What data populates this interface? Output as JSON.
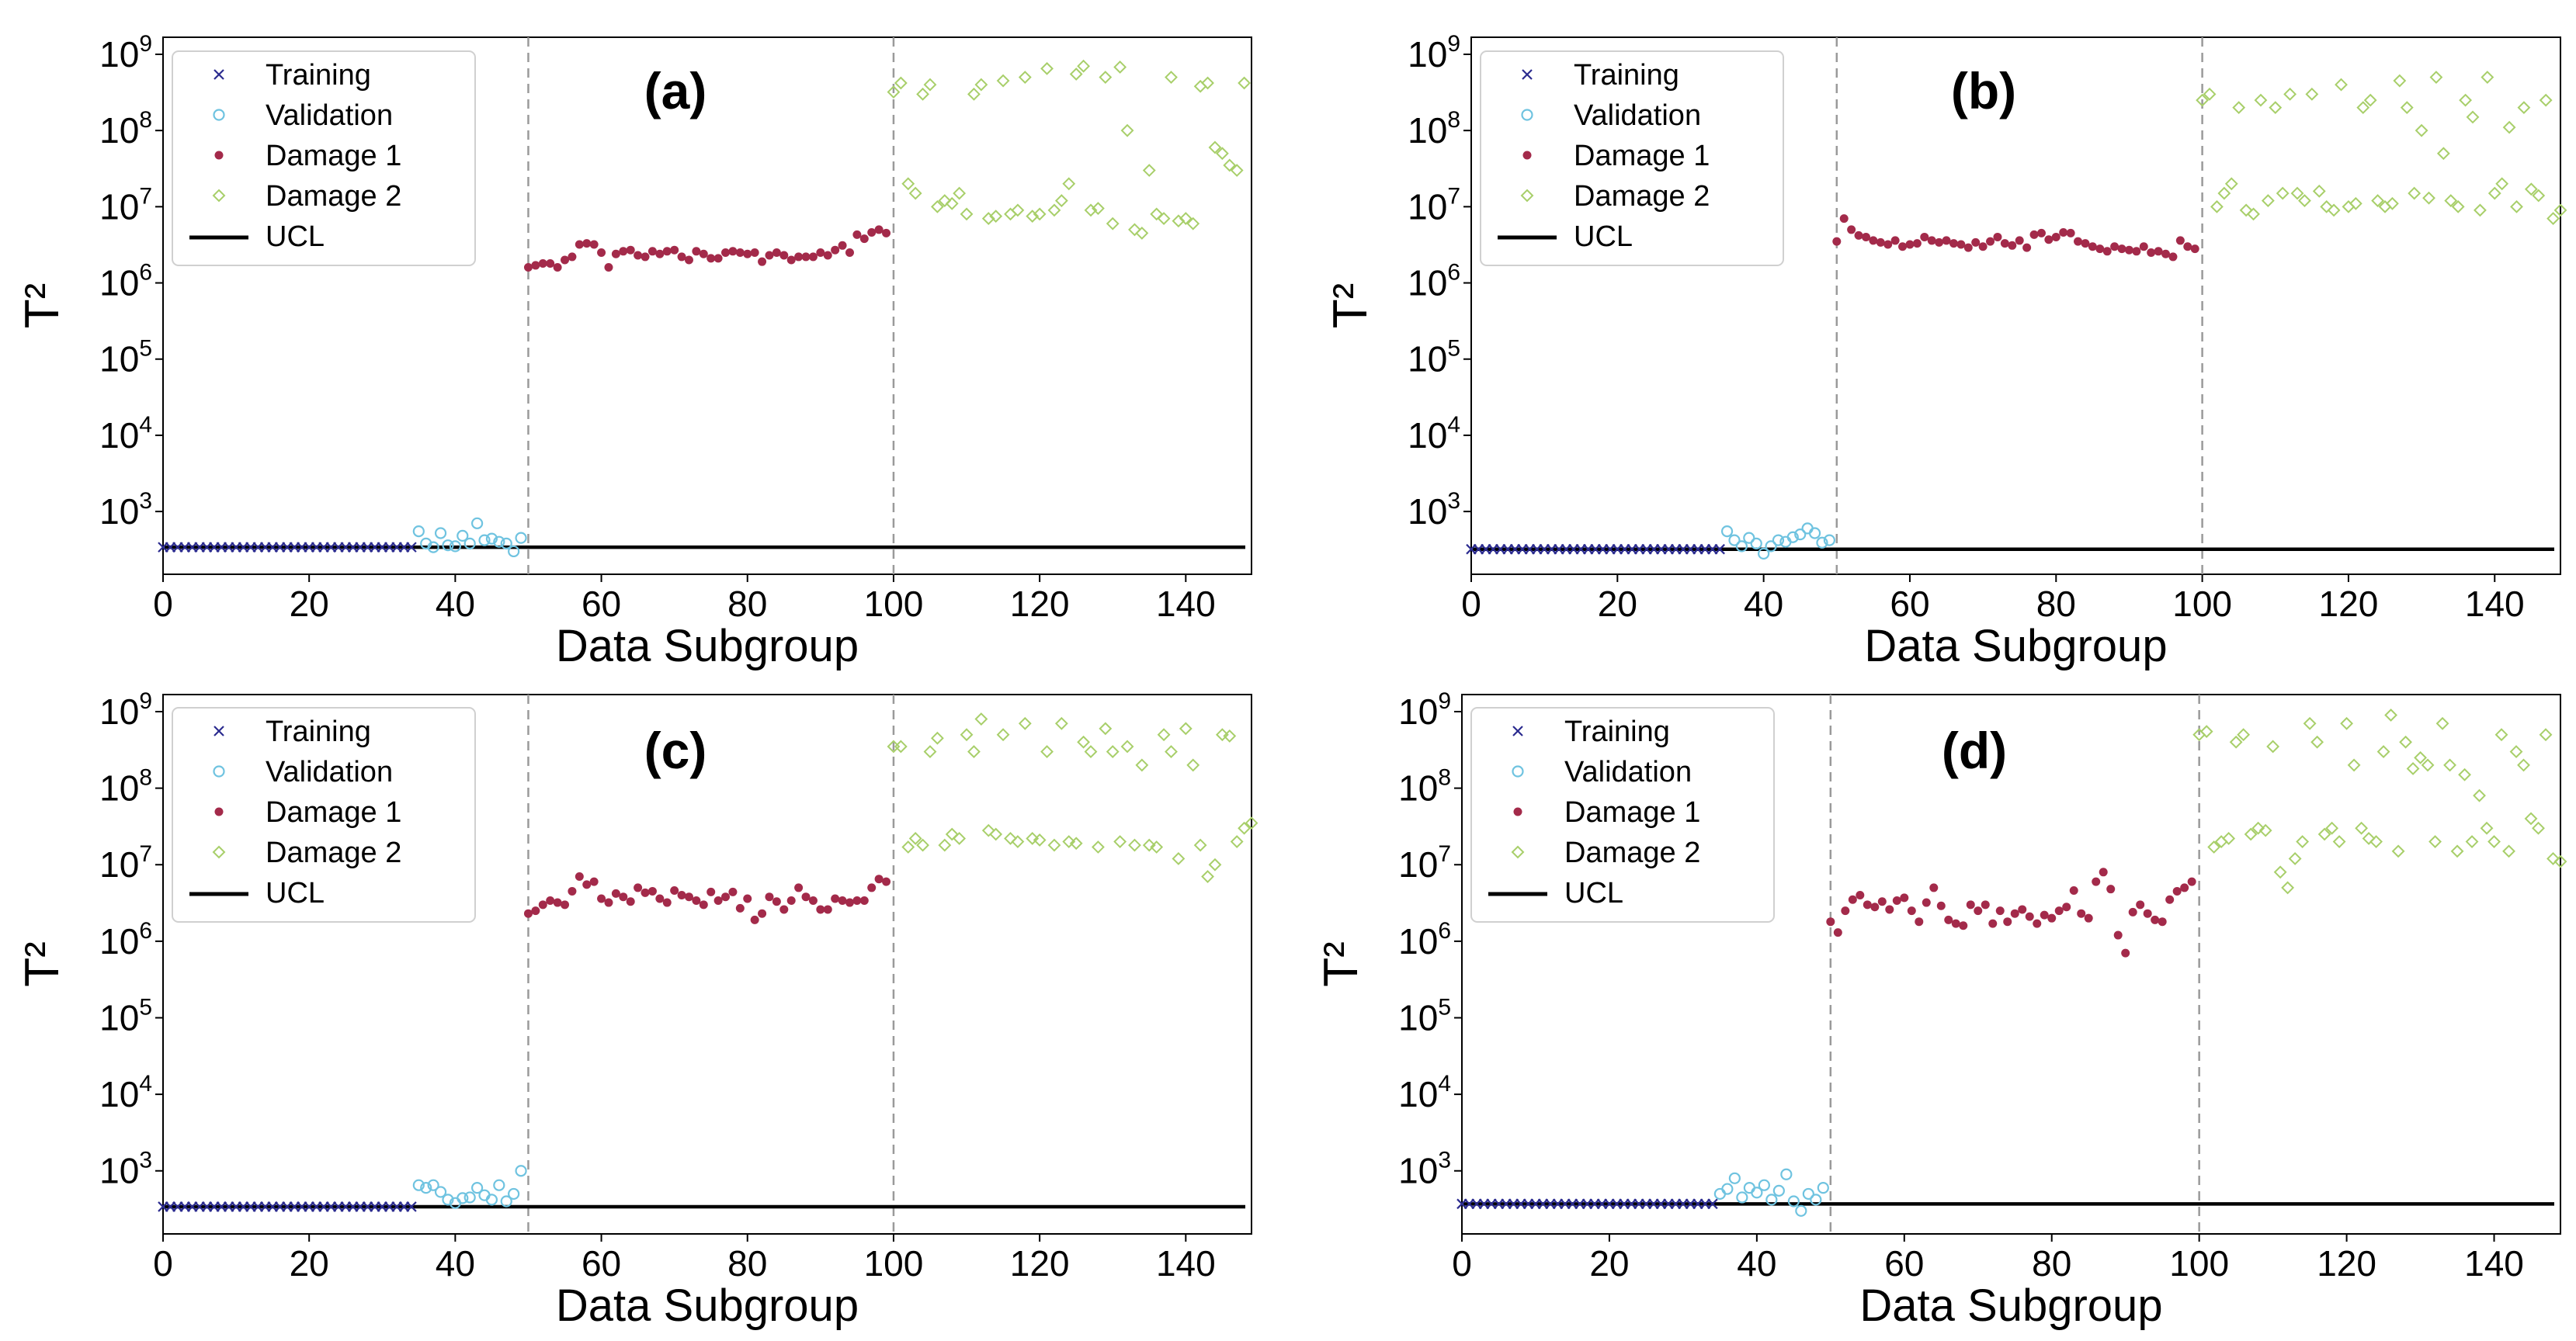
{
  "colors": {
    "training": "#2b2b8f",
    "validation": "#6fc3e0",
    "damage1": "#a32a4a",
    "damage2": "#a8cf6a",
    "ucl": "#000000",
    "divider": "#9a9a9a"
  },
  "chart_data": [
    {
      "type": "scatter",
      "panel_label": "(a)",
      "xlabel": "Data Subgroup",
      "ylabel": "T²",
      "yscale": "log",
      "xlim": [
        0,
        149
      ],
      "ylim": [
        150,
        1000000000
      ],
      "xticks": [
        0,
        20,
        40,
        60,
        80,
        100,
        120,
        140
      ],
      "yticks": [
        {
          "base": "10",
          "exp": "3",
          "value": 1000
        },
        {
          "base": "10",
          "exp": "4",
          "value": 10000
        },
        {
          "base": "10",
          "exp": "5",
          "value": 100000
        },
        {
          "base": "10",
          "exp": "6",
          "value": 1000000
        },
        {
          "base": "10",
          "exp": "7",
          "value": 10000000
        },
        {
          "base": "10",
          "exp": "8",
          "value": 100000000
        },
        {
          "base": "10",
          "exp": "9",
          "value": 1000000000
        }
      ],
      "dividers": [
        50,
        100
      ],
      "ucl": 340,
      "legend": [
        "Training",
        "Validation",
        "Damage 1",
        "Damage 2",
        "UCL"
      ],
      "series": [
        {
          "name": "Training",
          "marker": "x",
          "x_start": 0,
          "values": [
            340,
            340,
            340,
            340,
            340,
            340,
            340,
            340,
            340,
            340,
            340,
            340,
            340,
            340,
            340,
            340,
            340,
            340,
            340,
            340,
            340,
            340,
            340,
            340,
            340,
            340,
            340,
            340,
            340,
            340,
            340,
            340,
            340,
            340,
            340
          ]
        },
        {
          "name": "Validation",
          "marker": "o",
          "x_start": 35,
          "values": [
            550,
            380,
            340,
            520,
            360,
            350,
            480,
            380,
            700,
            420,
            440,
            400,
            380,
            300,
            450
          ]
        },
        {
          "name": "Damage 1",
          "marker": "dot",
          "x_start": 50,
          "values": [
            1600000,
            1700000,
            1800000,
            1800000,
            1600000,
            2000000,
            2200000,
            3200000,
            3300000,
            3200000,
            2500000,
            1600000,
            2400000,
            2600000,
            2700000,
            2300000,
            2200000,
            2600000,
            2400000,
            2600000,
            2700000,
            2200000,
            2000000,
            2600000,
            2400000,
            2100000,
            2100000,
            2500000,
            2600000,
            2500000,
            2400000,
            2500000,
            1900000,
            2300000,
            2500000,
            2300000,
            2000000,
            2200000,
            2200000,
            2200000,
            2500000,
            2300000,
            2700000,
            3100000,
            2500000,
            4300000,
            3800000,
            4600000,
            5000000,
            4500000
          ]
        },
        {
          "name": "Damage 2",
          "marker": "diamond",
          "x_start": 100,
          "values": [
            320000000,
            420000000,
            20000000,
            15000000,
            300000000,
            400000000,
            10000000,
            12000000,
            11000000,
            15000000,
            8000000,
            300000000,
            400000000,
            7000000,
            7500000,
            450000000,
            8000000,
            9000000,
            500000000,
            7500000,
            8000000,
            650000000,
            9000000,
            12000000,
            20000000,
            550000000,
            700000000,
            9000000,
            9500000,
            500000000,
            6000000,
            680000000,
            100000000,
            5000000,
            4500000,
            30000000,
            8000000,
            7000000,
            500000000,
            6500000,
            7000000,
            6000000,
            380000000,
            420000000,
            60000000,
            50000000,
            35000000,
            30000000,
            420000000
          ]
        }
      ]
    },
    {
      "type": "scatter",
      "panel_label": "(b)",
      "xlabel": "Data Subgroup",
      "ylabel": "T²",
      "yscale": "log",
      "xlim": [
        0,
        149
      ],
      "ylim": [
        150,
        1000000000
      ],
      "xticks": [
        0,
        20,
        40,
        60,
        80,
        100,
        120,
        140
      ],
      "yticks": [
        {
          "base": "10",
          "exp": "3",
          "value": 1000
        },
        {
          "base": "10",
          "exp": "4",
          "value": 10000
        },
        {
          "base": "10",
          "exp": "5",
          "value": 100000
        },
        {
          "base": "10",
          "exp": "6",
          "value": 1000000
        },
        {
          "base": "10",
          "exp": "7",
          "value": 10000000
        },
        {
          "base": "10",
          "exp": "8",
          "value": 100000000
        },
        {
          "base": "10",
          "exp": "9",
          "value": 1000000000
        }
      ],
      "dividers": [
        50,
        100
      ],
      "ucl": 320,
      "legend": [
        "Training",
        "Validation",
        "Damage 1",
        "Damage 2",
        "UCL"
      ],
      "series": [
        {
          "name": "Training",
          "marker": "x",
          "x_start": 0,
          "values": [
            320,
            320,
            320,
            320,
            320,
            320,
            320,
            320,
            320,
            320,
            320,
            320,
            320,
            320,
            320,
            320,
            320,
            320,
            320,
            320,
            320,
            320,
            320,
            320,
            320,
            320,
            320,
            320,
            320,
            320,
            320,
            320,
            320,
            320,
            320
          ]
        },
        {
          "name": "Validation",
          "marker": "o",
          "x_start": 35,
          "values": [
            550,
            420,
            350,
            450,
            380,
            280,
            350,
            420,
            400,
            460,
            500,
            600,
            520,
            390,
            420
          ]
        },
        {
          "name": "Damage 1",
          "marker": "dot",
          "x_start": 50,
          "values": [
            3500000,
            7000000,
            5000000,
            4200000,
            4000000,
            3600000,
            3400000,
            3200000,
            3600000,
            3000000,
            3200000,
            3300000,
            4000000,
            3600000,
            3400000,
            3600000,
            3300000,
            3200000,
            2900000,
            3400000,
            3000000,
            3500000,
            4000000,
            3300000,
            3100000,
            3600000,
            2900000,
            4300000,
            4500000,
            3700000,
            4000000,
            4600000,
            4500000,
            3500000,
            3300000,
            3000000,
            2800000,
            2600000,
            3000000,
            2800000,
            2700000,
            2600000,
            3000000,
            2500000,
            2600000,
            2400000,
            2200000,
            3600000,
            3000000,
            2800000
          ]
        },
        {
          "name": "Damage 2",
          "marker": "diamond",
          "x_start": 100,
          "values": [
            250000000,
            300000000,
            10000000,
            15000000,
            20000000,
            200000000,
            9000000,
            8000000,
            250000000,
            12000000,
            200000000,
            15000000,
            300000000,
            15000000,
            12000000,
            300000000,
            16000000,
            10000000,
            9000000,
            400000000,
            10000000,
            11000000,
            200000000,
            250000000,
            12000000,
            10000000,
            11000000,
            450000000,
            200000000,
            15000000,
            100000000,
            13000000,
            500000000,
            50000000,
            12000000,
            10000000,
            250000000,
            150000000,
            9000000,
            500000000,
            15000000,
            20000000,
            110000000,
            10000000,
            200000000,
            17000000,
            14000000,
            250000000,
            7000000,
            9000000
          ]
        }
      ]
    },
    {
      "type": "scatter",
      "panel_label": "(c)",
      "xlabel": "Data Subgroup",
      "ylabel": "T²",
      "yscale": "log",
      "xlim": [
        0,
        149
      ],
      "ylim": [
        150,
        1000000000
      ],
      "xticks": [
        0,
        20,
        40,
        60,
        80,
        100,
        120,
        140
      ],
      "yticks": [
        {
          "base": "10",
          "exp": "3",
          "value": 1000
        },
        {
          "base": "10",
          "exp": "4",
          "value": 10000
        },
        {
          "base": "10",
          "exp": "5",
          "value": 100000
        },
        {
          "base": "10",
          "exp": "6",
          "value": 1000000
        },
        {
          "base": "10",
          "exp": "7",
          "value": 10000000
        },
        {
          "base": "10",
          "exp": "8",
          "value": 100000000
        },
        {
          "base": "10",
          "exp": "9",
          "value": 1000000000
        }
      ],
      "dividers": [
        50,
        100
      ],
      "ucl": 340,
      "legend": [
        "Training",
        "Validation",
        "Damage 1",
        "Damage 2",
        "UCL"
      ],
      "series": [
        {
          "name": "Training",
          "marker": "x",
          "x_start": 0,
          "values": [
            340,
            340,
            340,
            340,
            340,
            340,
            340,
            340,
            340,
            340,
            340,
            340,
            340,
            340,
            340,
            340,
            340,
            340,
            340,
            340,
            340,
            340,
            340,
            340,
            340,
            340,
            340,
            340,
            340,
            340,
            340,
            340,
            340,
            340,
            340
          ]
        },
        {
          "name": "Validation",
          "marker": "o",
          "x_start": 35,
          "values": [
            650,
            600,
            650,
            530,
            420,
            380,
            440,
            450,
            600,
            480,
            420,
            650,
            400,
            500,
            1000
          ]
        },
        {
          "name": "Damage 1",
          "marker": "dot",
          "x_start": 50,
          "values": [
            2300000,
            2500000,
            3000000,
            3400000,
            3200000,
            3000000,
            4500000,
            7000000,
            5500000,
            6000000,
            3600000,
            3200000,
            4200000,
            3800000,
            3300000,
            5000000,
            4300000,
            4500000,
            3600000,
            3200000,
            4600000,
            4000000,
            3800000,
            3400000,
            3000000,
            4400000,
            3400000,
            3800000,
            4400000,
            2700000,
            3600000,
            1900000,
            2300000,
            3800000,
            3300000,
            2600000,
            3400000,
            5000000,
            3800000,
            3400000,
            2600000,
            2600000,
            3600000,
            3400000,
            3200000,
            3400000,
            3400000,
            5000000,
            6500000,
            6000000
          ]
        },
        {
          "name": "Damage 2",
          "marker": "diamond",
          "x_start": 100,
          "values": [
            350000000,
            350000000,
            17000000,
            22000000,
            18000000,
            300000000,
            450000000,
            18000000,
            25000000,
            22000000,
            500000000,
            300000000,
            800000000,
            28000000,
            25000000,
            500000000,
            22000000,
            20000000,
            700000000,
            22000000,
            21000000,
            300000000,
            18000000,
            700000000,
            20000000,
            19000000,
            400000000,
            300000000,
            17000000,
            600000000,
            300000000,
            20000000,
            350000000,
            18000000,
            200000000,
            18000000,
            17000000,
            500000000,
            300000000,
            12000000,
            600000000,
            200000000,
            18000000,
            7000000,
            10000000,
            500000000,
            480000000,
            20000000,
            30000000,
            35000000
          ]
        }
      ]
    },
    {
      "type": "scatter",
      "panel_label": "(d)",
      "xlabel": "Data Subgroup",
      "ylabel": "T²",
      "yscale": "log",
      "xlim": [
        0,
        149
      ],
      "ylim": [
        150,
        1000000000
      ],
      "xticks": [
        0,
        20,
        40,
        60,
        80,
        100,
        120,
        140
      ],
      "yticks": [
        {
          "base": "10",
          "exp": "3",
          "value": 1000
        },
        {
          "base": "10",
          "exp": "4",
          "value": 10000
        },
        {
          "base": "10",
          "exp": "5",
          "value": 100000
        },
        {
          "base": "10",
          "exp": "6",
          "value": 1000000
        },
        {
          "base": "10",
          "exp": "7",
          "value": 10000000
        },
        {
          "base": "10",
          "exp": "8",
          "value": 100000000
        },
        {
          "base": "10",
          "exp": "9",
          "value": 1000000000
        }
      ],
      "dividers": [
        50,
        100
      ],
      "ucl": 370,
      "legend": [
        "Training",
        "Validation",
        "Damage 1",
        "Damage 2",
        "UCL"
      ],
      "series": [
        {
          "name": "Training",
          "marker": "x",
          "x_start": 0,
          "values": [
            370,
            370,
            370,
            370,
            370,
            370,
            370,
            370,
            370,
            370,
            370,
            370,
            370,
            370,
            370,
            370,
            370,
            370,
            370,
            370,
            370,
            370,
            370,
            370,
            370,
            370,
            370,
            370,
            370,
            370,
            370,
            370,
            370,
            370,
            370
          ]
        },
        {
          "name": "Validation",
          "marker": "o",
          "x_start": 35,
          "values": [
            500,
            580,
            800,
            450,
            600,
            520,
            650,
            420,
            550,
            900,
            400,
            300,
            500,
            420,
            600
          ]
        },
        {
          "name": "Damage 1",
          "marker": "dot",
          "x_start": 50,
          "values": [
            1800000,
            1300000,
            2500000,
            3500000,
            4000000,
            3000000,
            2800000,
            3300000,
            2600000,
            3400000,
            3700000,
            2500000,
            1800000,
            3200000,
            5000000,
            2900000,
            1900000,
            1700000,
            1600000,
            3000000,
            2500000,
            3000000,
            1700000,
            2500000,
            1800000,
            2300000,
            2600000,
            2100000,
            1700000,
            2200000,
            2000000,
            2500000,
            2800000,
            4600000,
            2300000,
            2000000,
            6000000,
            8000000,
            4800000,
            1200000,
            700000,
            2400000,
            3000000,
            2300000,
            1900000,
            1800000,
            3500000,
            4500000,
            5000000,
            6000000
          ]
        },
        {
          "name": "Damage 2",
          "marker": "diamond",
          "x_start": 100,
          "values": [
            500000000,
            550000000,
            17000000,
            20000000,
            22000000,
            400000000,
            500000000,
            25000000,
            30000000,
            28000000,
            350000000,
            8000000,
            5000000,
            12000000,
            20000000,
            700000000,
            400000000,
            25000000,
            30000000,
            20000000,
            700000000,
            200000000,
            30000000,
            22000000,
            20000000,
            300000000,
            900000000,
            15000000,
            400000000,
            180000000,
            250000000,
            200000000,
            20000000,
            700000000,
            200000000,
            15000000,
            150000000,
            20000000,
            80000000,
            30000000,
            20000000,
            500000000,
            15000000,
            300000000,
            200000000,
            40000000,
            30000000,
            500000000,
            12000000,
            11000000
          ]
        }
      ]
    }
  ]
}
